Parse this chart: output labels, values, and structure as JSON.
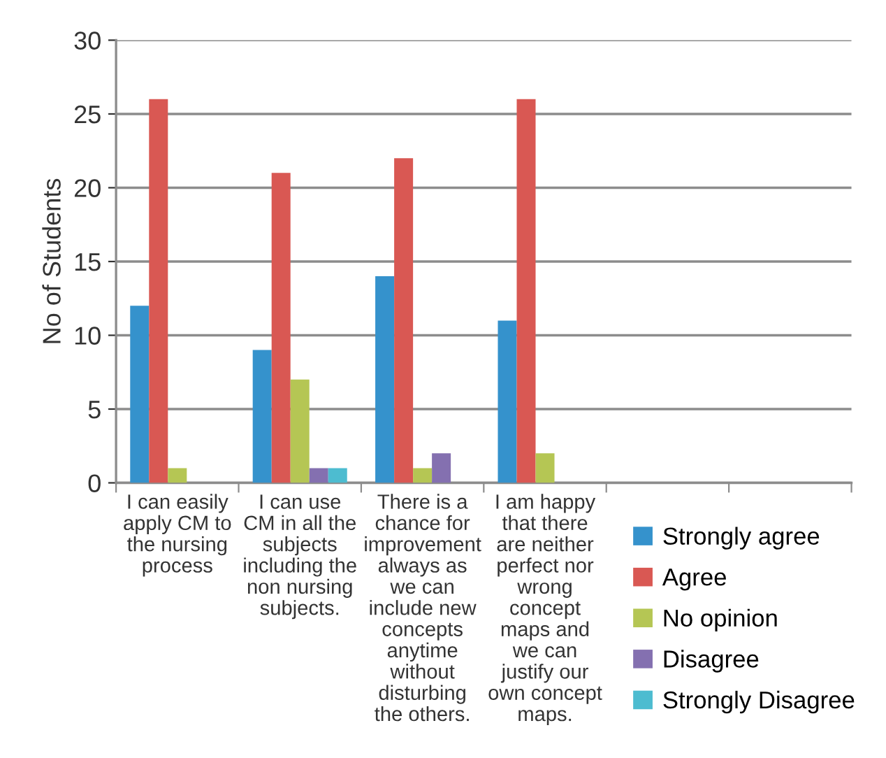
{
  "chart_data": {
    "type": "bar",
    "ylabel": "No of Students",
    "categories": [
      "I can easily apply CM to the nursing process",
      "I can use CM in all the subjects including the non nursing subjects.",
      "There is a chance for improvement always as we can include new concepts anytime without disturbing the others.",
      "I am happy that there are neither perfect nor wrong concept maps and we can justify our own concept maps.",
      null,
      null
    ],
    "series": [
      {
        "name": "Strongly agree",
        "color": "#3592cc",
        "values": [
          12,
          9,
          14,
          11,
          null,
          null
        ]
      },
      {
        "name": "Agree",
        "color": "#d95853",
        "values": [
          26,
          21,
          22,
          26,
          null,
          null
        ]
      },
      {
        "name": "No opinion",
        "color": "#b5c654",
        "values": [
          1,
          7,
          1,
          2,
          null,
          null
        ]
      },
      {
        "name": "Disagree",
        "color": "#8470b0",
        "values": [
          0,
          1,
          2,
          0,
          null,
          null
        ]
      },
      {
        "name": "Strongly Disagree",
        "color": "#4dbcd0",
        "values": [
          0,
          1,
          0,
          0,
          null,
          null
        ]
      }
    ],
    "ylim": [
      0,
      30
    ],
    "yticks": [
      0,
      5,
      10,
      15,
      20,
      25,
      30
    ],
    "grid": "y",
    "legend": "bottom right"
  }
}
